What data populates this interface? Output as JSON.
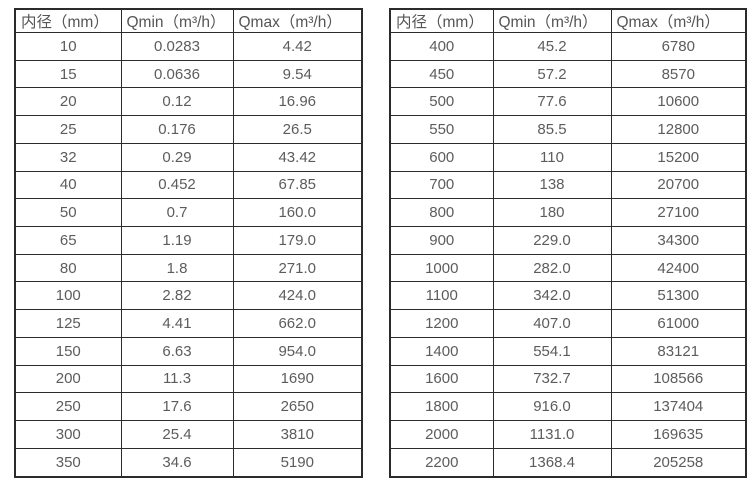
{
  "colors": {
    "border": "#2b2b2b",
    "text": "#5c5c5c",
    "background": "#ffffff"
  },
  "tables": [
    {
      "headers": [
        "内径（mm）",
        "Qmin（m³/h）",
        "Qmax（m³/h）"
      ],
      "rows": [
        [
          "10",
          "0.0283",
          "4.42"
        ],
        [
          "15",
          "0.0636",
          "9.54"
        ],
        [
          "20",
          "0.12",
          "16.96"
        ],
        [
          "25",
          "0.176",
          "26.5"
        ],
        [
          "32",
          "0.29",
          "43.42"
        ],
        [
          "40",
          "0.452",
          "67.85"
        ],
        [
          "50",
          "0.7",
          "160.0"
        ],
        [
          "65",
          "1.19",
          "179.0"
        ],
        [
          "80",
          "1.8",
          "271.0"
        ],
        [
          "100",
          "2.82",
          "424.0"
        ],
        [
          "125",
          "4.41",
          "662.0"
        ],
        [
          "150",
          "6.63",
          "954.0"
        ],
        [
          "200",
          "11.3",
          "1690"
        ],
        [
          "250",
          "17.6",
          "2650"
        ],
        [
          "300",
          "25.4",
          "3810"
        ],
        [
          "350",
          "34.6",
          "5190"
        ]
      ]
    },
    {
      "headers": [
        "内径（mm）",
        "Qmin（m³/h）",
        "Qmax（m³/h）"
      ],
      "rows": [
        [
          "400",
          "45.2",
          "6780"
        ],
        [
          "450",
          "57.2",
          "8570"
        ],
        [
          "500",
          "77.6",
          "10600"
        ],
        [
          "550",
          "85.5",
          "12800"
        ],
        [
          "600",
          "110",
          "15200"
        ],
        [
          "700",
          "138",
          "20700"
        ],
        [
          "800",
          "180",
          "27100"
        ],
        [
          "900",
          "229.0",
          "34300"
        ],
        [
          "1000",
          "282.0",
          "42400"
        ],
        [
          "1100",
          "342.0",
          "51300"
        ],
        [
          "1200",
          "407.0",
          "61000"
        ],
        [
          "1400",
          "554.1",
          "83121"
        ],
        [
          "1600",
          "732.7",
          "108566"
        ],
        [
          "1800",
          "916.0",
          "137404"
        ],
        [
          "2000",
          "1131.0",
          "169635"
        ],
        [
          "2200",
          "1368.4",
          "205258"
        ]
      ]
    }
  ],
  "chart_data": {
    "type": "table",
    "title": "",
    "tables": [
      {
        "columns": [
          "内径（mm）",
          "Qmin（m³/h）",
          "Qmax（m³/h）"
        ],
        "diameters_mm": [
          10,
          15,
          20,
          25,
          32,
          40,
          50,
          65,
          80,
          100,
          125,
          150,
          200,
          250,
          300,
          350
        ],
        "qmin": [
          0.0283,
          0.0636,
          0.12,
          0.176,
          0.29,
          0.452,
          0.7,
          1.19,
          1.8,
          2.82,
          4.41,
          6.63,
          11.3,
          17.6,
          25.4,
          34.6
        ],
        "qmax": [
          4.42,
          9.54,
          16.96,
          26.5,
          43.42,
          67.85,
          160.0,
          179.0,
          271.0,
          424.0,
          662.0,
          954.0,
          1690,
          2650,
          3810,
          5190
        ]
      },
      {
        "columns": [
          "内径（mm）",
          "Qmin（m³/h）",
          "Qmax（m³/h）"
        ],
        "diameters_mm": [
          400,
          450,
          500,
          550,
          600,
          700,
          800,
          900,
          1000,
          1100,
          1200,
          1400,
          1600,
          1800,
          2000,
          2200
        ],
        "qmin": [
          45.2,
          57.2,
          77.6,
          85.5,
          110,
          138,
          180,
          229.0,
          282.0,
          342.0,
          407.0,
          554.1,
          732.7,
          916.0,
          1131.0,
          1368.4
        ],
        "qmax": [
          6780,
          8570,
          10600,
          12800,
          15200,
          20700,
          27100,
          34300,
          42400,
          51300,
          61000,
          83121,
          108566,
          137404,
          169635,
          205258
        ]
      }
    ]
  }
}
